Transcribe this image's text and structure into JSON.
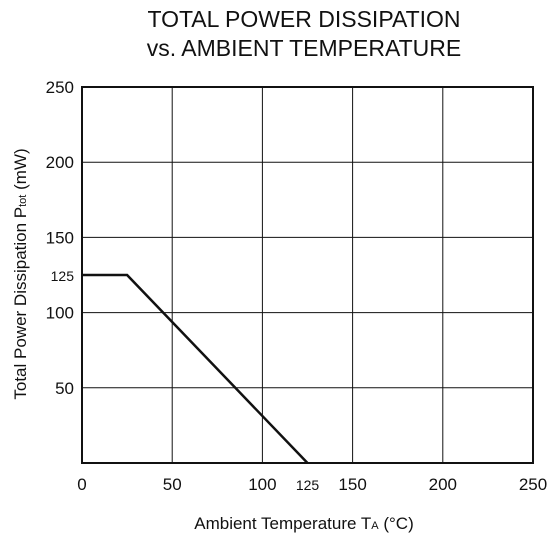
{
  "chart_data": {
    "type": "line",
    "title": [
      "TOTAL POWER DISSIPATION",
      "vs. AMBIENT TEMPERATURE"
    ],
    "xlabel": {
      "text": "Ambient Temperature  T",
      "sub": "A",
      "unit": " (°C)"
    },
    "ylabel": {
      "text": "Total Power Dissipation  P",
      "sub": "tot",
      "unit": " (mW)"
    },
    "xlim": [
      0,
      250
    ],
    "ylim": [
      0,
      250
    ],
    "xticks": [
      {
        "value": 0,
        "label": "0"
      },
      {
        "value": 50,
        "label": "50"
      },
      {
        "value": 100,
        "label": "100"
      },
      {
        "value": 125,
        "label": "125",
        "small": true
      },
      {
        "value": 150,
        "label": "150"
      },
      {
        "value": 200,
        "label": "200"
      },
      {
        "value": 250,
        "label": "250"
      }
    ],
    "yticks": [
      {
        "value": 50,
        "label": "50"
      },
      {
        "value": 100,
        "label": "100"
      },
      {
        "value": 125,
        "label": "125",
        "small": true
      },
      {
        "value": 150,
        "label": "150"
      },
      {
        "value": 200,
        "label": "200"
      },
      {
        "value": 250,
        "label": "250"
      }
    ],
    "x_gridlines": [
      50,
      100,
      150,
      200
    ],
    "y_gridlines": [
      50,
      100,
      150,
      200
    ],
    "grid": true,
    "series": [
      {
        "x": [
          0,
          25,
          125
        ],
        "y": [
          125,
          125,
          0
        ]
      }
    ]
  }
}
